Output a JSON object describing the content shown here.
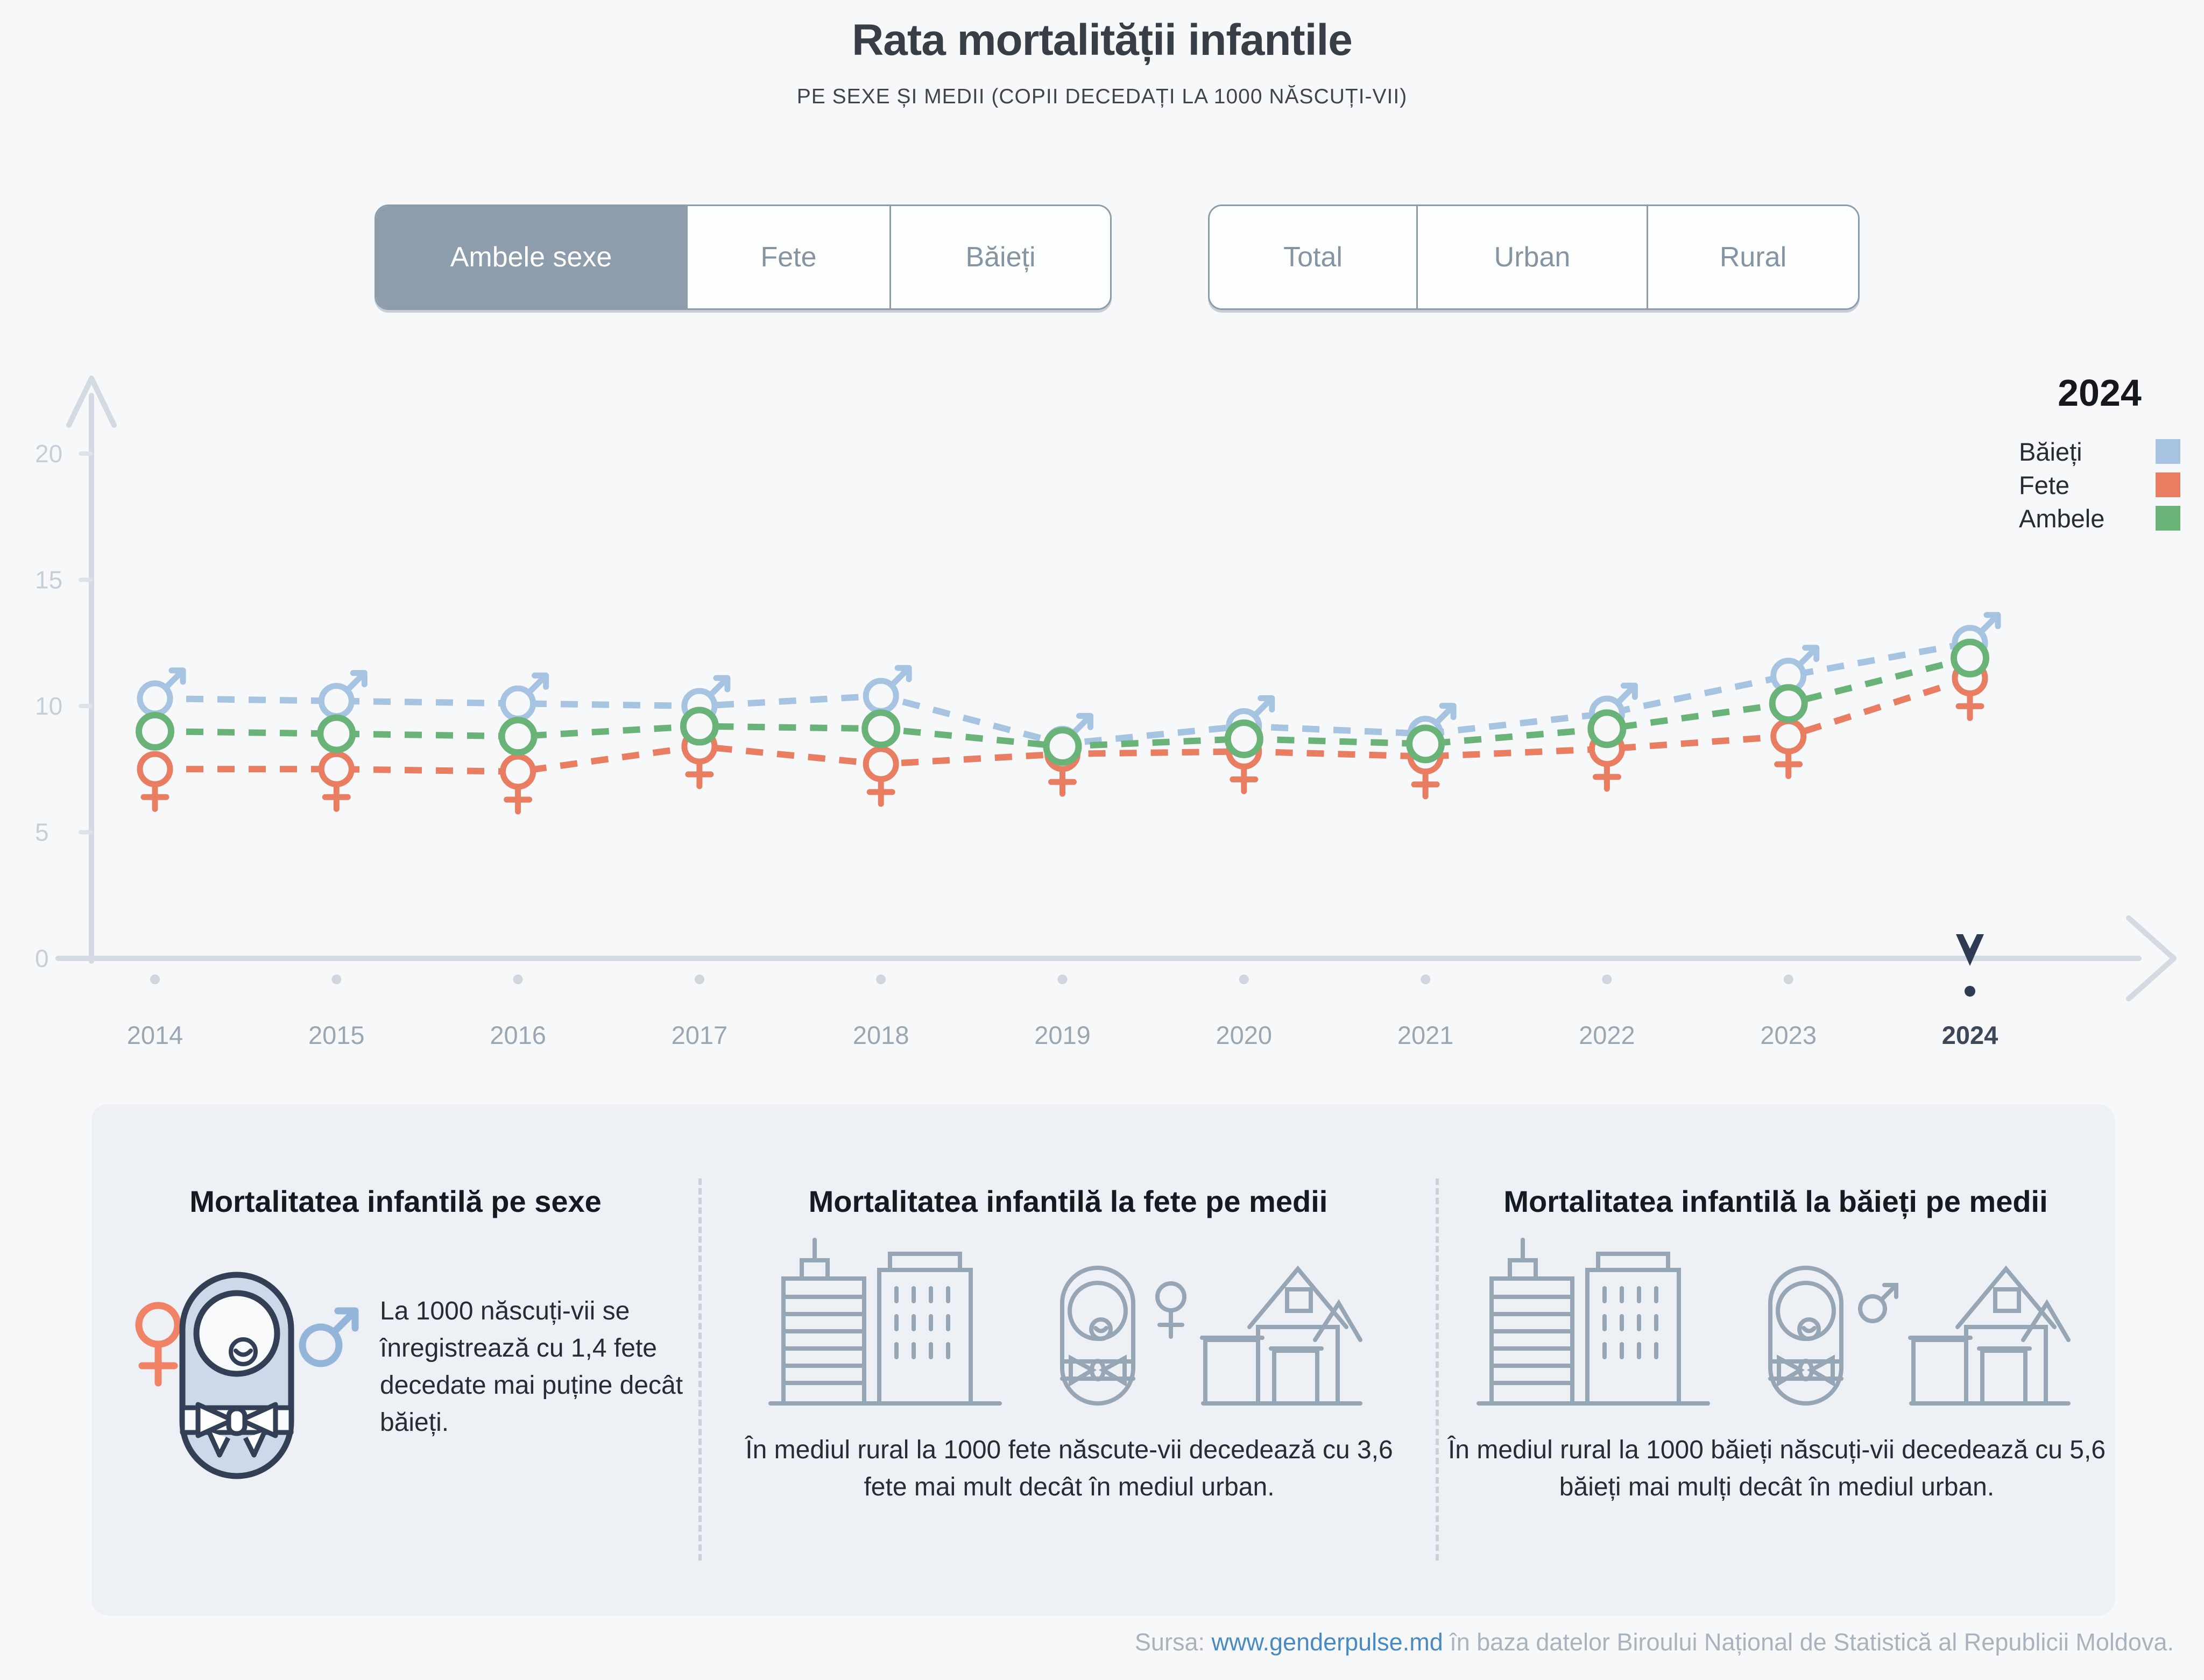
{
  "header": {
    "title": "Rata mortalității infantile",
    "subtitle": "PE SEXE ȘI MEDII (COPII DECEDAȚI LA 1000 NĂSCUȚI-VII)"
  },
  "controls": {
    "sex": [
      {
        "label": "Ambele sexe",
        "selected": true
      },
      {
        "label": "Fete",
        "selected": false
      },
      {
        "label": "Băieți",
        "selected": false
      }
    ],
    "area": [
      {
        "label": "Total",
        "selected": false
      },
      {
        "label": "Urban",
        "selected": false
      },
      {
        "label": "Rural",
        "selected": false
      }
    ]
  },
  "chart_data": {
    "type": "line",
    "title": "Rata mortalității infantile pe sexe (copii decedați la 1000 născuți-vii)",
    "x": [
      2014,
      2015,
      2016,
      2017,
      2018,
      2019,
      2020,
      2021,
      2022,
      2023,
      2024
    ],
    "xlabel": "",
    "ylabel": "",
    "ylim": [
      0,
      20
    ],
    "yticks": [
      0,
      5,
      10,
      15,
      20
    ],
    "grid": false,
    "legend_position": "top-right",
    "selected_year": 2024,
    "series": [
      {
        "name": "Băieți",
        "marker": "male",
        "color": "#a6c4e2",
        "values": [
          10.3,
          10.2,
          10.1,
          10.0,
          10.4,
          8.5,
          9.2,
          8.9,
          9.7,
          11.2,
          12.5
        ]
      },
      {
        "name": "Fete",
        "marker": "female",
        "color": "#e97d61",
        "values": [
          7.5,
          7.5,
          7.4,
          8.4,
          7.7,
          8.1,
          8.2,
          8.0,
          8.3,
          8.8,
          11.1
        ]
      },
      {
        "name": "Ambele",
        "marker": "circle",
        "color": "#69b378",
        "values": [
          9.0,
          8.9,
          8.8,
          9.2,
          9.1,
          8.4,
          8.7,
          8.5,
          9.1,
          10.1,
          11.9
        ]
      }
    ]
  },
  "legend": {
    "year": "2024",
    "items": [
      {
        "label": "Băieți",
        "color": "#a6c4e2"
      },
      {
        "label": "Fete",
        "color": "#e97d61"
      },
      {
        "label": "Ambele",
        "color": "#69b378"
      }
    ]
  },
  "cards": [
    {
      "title": "Mortalitatea infantilă pe sexe",
      "body": "La 1000 născuți-vii se înregistrează cu 1,4 fete decedate mai puține decât băieți."
    },
    {
      "title": "Mortalitatea infantilă la fete pe medii",
      "body": "În mediul rural la 1000 fete născute-vii decedează cu 3,6 fete mai mult decât în mediul urban."
    },
    {
      "title": "Mortalitatea infantilă la băieți pe medii",
      "body": "În mediul rural la 1000 băieți născuți-vii decedează cu 5,6 băieți mai mulți decât în mediul urban."
    }
  ],
  "footer": {
    "source_label": "Sursa:",
    "link_text": "www.genderpulse.md",
    "suffix": "în baza datelor Biroului Național de Statistică al Republicii Moldova."
  }
}
